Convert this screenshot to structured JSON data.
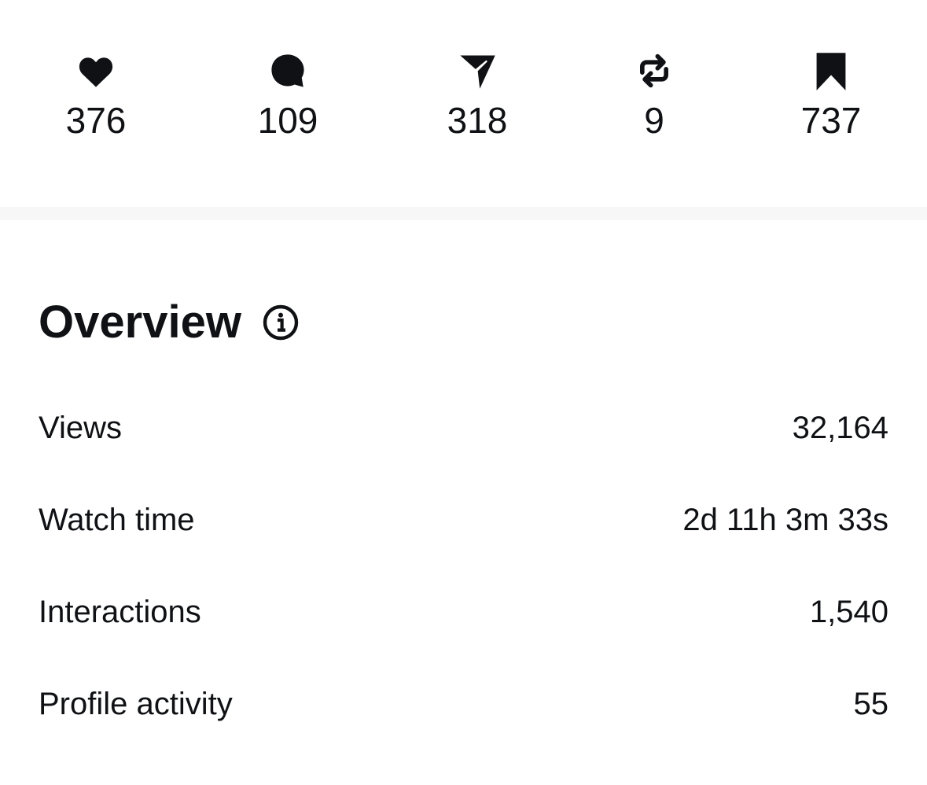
{
  "stats": [
    {
      "icon": "heart-icon",
      "value": "376"
    },
    {
      "icon": "comment-icon",
      "value": "109"
    },
    {
      "icon": "send-icon",
      "value": "318"
    },
    {
      "icon": "repost-icon",
      "value": "9"
    },
    {
      "icon": "bookmark-icon",
      "value": "737"
    }
  ],
  "overview": {
    "title": "Overview",
    "info_icon": "info-icon",
    "rows": [
      {
        "label": "Views",
        "value": "32,164"
      },
      {
        "label": "Watch time",
        "value": "2d 11h 3m 33s"
      },
      {
        "label": "Interactions",
        "value": "1,540"
      },
      {
        "label": "Profile activity",
        "value": "55"
      }
    ]
  }
}
